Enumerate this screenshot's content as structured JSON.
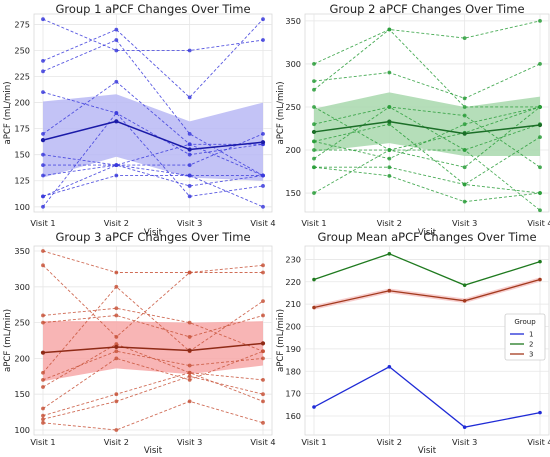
{
  "chart_data": [
    {
      "type": "line",
      "title": "Group 1 aPCF Changes Over Time",
      "xlabel": "Visit",
      "ylabel": "aPCF (mL/min)",
      "categories": [
        "Visit 1",
        "Visit 2",
        "Visit 3",
        "Visit 4"
      ],
      "yticks": [
        100,
        125,
        150,
        175,
        200,
        225,
        250,
        275
      ],
      "ylim": [
        95,
        285
      ],
      "color": "#3b3bdc",
      "band_color": "#b8b8f5",
      "series": [
        {
          "values": [
            280,
            250,
            250,
            260
          ]
        },
        {
          "values": [
            240,
            270,
            205,
            280
          ]
        },
        {
          "values": [
            230,
            260,
            170,
            130
          ]
        },
        {
          "values": [
            210,
            190,
            150,
            160
          ]
        },
        {
          "values": [
            170,
            220,
            160,
            160
          ]
        },
        {
          "values": [
            150,
            140,
            140,
            170
          ]
        },
        {
          "values": [
            140,
            140,
            120,
            130
          ]
        },
        {
          "values": [
            130,
            140,
            160,
            130
          ]
        },
        {
          "values": [
            110,
            130,
            130,
            100
          ]
        },
        {
          "values": [
            100,
            190,
            110,
            120
          ]
        },
        {
          "values": [
            110,
            140,
            130,
            130
          ]
        }
      ],
      "mean": [
        164,
        182,
        155,
        162
      ],
      "band_upper": [
        201,
        208,
        182,
        200
      ],
      "band_lower": [
        128,
        148,
        128,
        125
      ]
    },
    {
      "type": "line",
      "title": "Group 2 aPCF Changes Over Time",
      "xlabel": "Visit",
      "ylabel": "aPCF (mL/min)",
      "categories": [
        "Visit 1",
        "Visit 2",
        "Visit 3",
        "Visit 4"
      ],
      "yticks": [
        150,
        200,
        250,
        300,
        350
      ],
      "ylim": [
        128,
        358
      ],
      "color": "#2a9e3a",
      "band_color": "#a8d8ad",
      "series": [
        {
          "values": [
            300,
            340,
            330,
            350
          ]
        },
        {
          "values": [
            280,
            290,
            260,
            300
          ]
        },
        {
          "values": [
            270,
            340,
            250,
            250
          ]
        },
        {
          "values": [
            250,
            200,
            180,
            250
          ]
        },
        {
          "values": [
            230,
            250,
            200,
            230
          ]
        },
        {
          "values": [
            210,
            190,
            230,
            250
          ]
        },
        {
          "values": [
            200,
            200,
            220,
            250
          ]
        },
        {
          "values": [
            190,
            250,
            240,
            180
          ]
        },
        {
          "values": [
            180,
            180,
            160,
            150
          ]
        },
        {
          "values": [
            180,
            170,
            140,
            150
          ]
        },
        {
          "values": [
            150,
            200,
            200,
            130
          ]
        },
        {
          "values": [
            210,
            230,
            160,
            215
          ]
        }
      ],
      "mean": [
        221,
        233,
        219,
        229
      ],
      "band_upper": [
        248,
        267,
        250,
        262
      ],
      "band_lower": [
        198,
        208,
        193,
        193
      ]
    },
    {
      "type": "line",
      "title": "Group 3 aPCF Changes Over Time",
      "xlabel": "Visit",
      "ylabel": "aPCF (mL/min)",
      "categories": [
        "Visit 1",
        "Visit 2",
        "Visit 3",
        "Visit 4"
      ],
      "yticks": [
        100,
        150,
        200,
        250,
        300,
        350
      ],
      "ylim": [
        93,
        357
      ],
      "color": "#c8543a",
      "band_color": "#f7a8a8",
      "series": [
        {
          "values": [
            350,
            320,
            320,
            330
          ]
        },
        {
          "values": [
            330,
            230,
            320,
            320
          ]
        },
        {
          "values": [
            260,
            270,
            250,
            210
          ]
        },
        {
          "values": [
            250,
            260,
            230,
            260
          ]
        },
        {
          "values": [
            180,
            300,
            210,
            280
          ]
        },
        {
          "values": [
            170,
            210,
            190,
            200
          ]
        },
        {
          "values": [
            160,
            220,
            180,
            170
          ]
        },
        {
          "values": [
            130,
            200,
            170,
            210
          ]
        },
        {
          "values": [
            120,
            150,
            180,
            140
          ]
        },
        {
          "values": [
            110,
            100,
            140,
            110
          ]
        },
        {
          "values": [
            115,
            140,
            175,
            150
          ]
        }
      ],
      "mean": [
        208,
        216,
        211,
        221
      ],
      "band_upper": [
        252,
        252,
        250,
        252
      ],
      "band_lower": [
        168,
        186,
        178,
        190
      ]
    },
    {
      "type": "line",
      "title": "Group Mean aPCF Changes Over Time",
      "xlabel": "Visit",
      "ylabel": "aPCF (mL/min)",
      "categories": [
        "Visit 1",
        "Visit 2",
        "Visit 3",
        "Visit 4"
      ],
      "yticks": [
        160,
        170,
        180,
        190,
        200,
        210,
        220,
        230
      ],
      "ylim": [
        151.5,
        236
      ],
      "legend": {
        "title": "Group",
        "placement": "right"
      },
      "series": [
        {
          "name": "1",
          "values": [
            164,
            182,
            155,
            161.5
          ],
          "color": "#1f2bd6"
        },
        {
          "name": "2",
          "values": [
            221,
            232.5,
            218.5,
            229
          ],
          "color": "#1f7a1f"
        },
        {
          "name": "3",
          "values": [
            208.5,
            216,
            211.5,
            221
          ],
          "color": "#a33a1e"
        }
      ],
      "band_color": "#f6c6c6",
      "band_series": "3",
      "band_upper": [
        209.5,
        217,
        212.5,
        222
      ],
      "band_lower": [
        207.5,
        215,
        210.5,
        220
      ]
    }
  ]
}
